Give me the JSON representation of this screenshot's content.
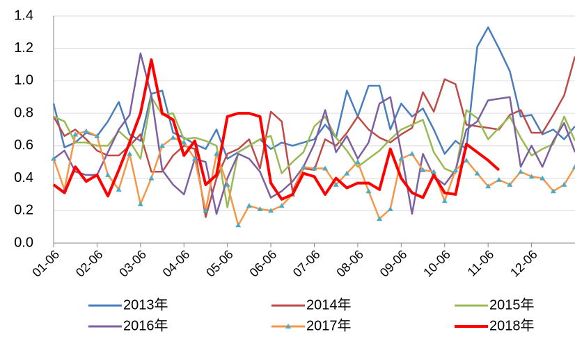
{
  "chart_data": {
    "type": "line",
    "categories": [
      "01-06",
      null,
      null,
      null,
      "02-06",
      null,
      null,
      null,
      "03-06",
      null,
      null,
      null,
      "04-06",
      null,
      null,
      null,
      "05-06",
      null,
      null,
      null,
      "06-06",
      null,
      null,
      null,
      "07-06",
      null,
      null,
      null,
      "08-06",
      null,
      null,
      null,
      "09-06",
      null,
      null,
      null,
      "10-06",
      null,
      null,
      null,
      "11-06",
      null,
      null,
      null,
      "12-06",
      null,
      null,
      null,
      null
    ],
    "series": [
      {
        "name": "2013年",
        "color": "#4a7ebb",
        "values": [
          0.86,
          0.59,
          0.62,
          0.68,
          0.66,
          0.75,
          0.87,
          0.67,
          0.63,
          0.92,
          0.94,
          0.68,
          0.65,
          0.61,
          0.58,
          0.7,
          0.52,
          0.56,
          0.6,
          0.64,
          0.58,
          0.62,
          0.6,
          0.62,
          0.64,
          0.73,
          0.65,
          0.94,
          0.78,
          0.97,
          0.97,
          0.7,
          0.86,
          0.78,
          0.83,
          0.7,
          0.55,
          0.63,
          0.58,
          1.21,
          1.33,
          1.2,
          1.06,
          0.78,
          0.79,
          0.67,
          0.7,
          0.64,
          0.72
        ]
      },
      {
        "name": "2014年",
        "color": "#be4b48",
        "values": [
          0.78,
          0.66,
          0.7,
          0.64,
          0.57,
          0.54,
          0.54,
          0.6,
          0.67,
          0.44,
          0.44,
          0.54,
          0.6,
          0.58,
          0.16,
          0.4,
          0.55,
          0.58,
          0.64,
          0.46,
          0.81,
          0.75,
          0.32,
          0.46,
          0.45,
          0.64,
          0.6,
          0.68,
          0.78,
          0.7,
          0.65,
          0.62,
          0.67,
          0.71,
          0.93,
          0.81,
          1.01,
          0.98,
          0.73,
          0.72,
          0.71,
          0.7,
          0.79,
          0.82,
          0.68,
          0.68,
          0.79,
          0.91,
          1.15
        ]
      },
      {
        "name": "2015年",
        "color": "#98b954",
        "values": [
          0.78,
          0.75,
          0.62,
          0.62,
          0.6,
          0.6,
          0.69,
          0.63,
          0.52,
          0.9,
          0.79,
          0.8,
          0.64,
          0.65,
          0.63,
          0.6,
          0.22,
          0.56,
          0.6,
          0.64,
          0.66,
          0.43,
          0.5,
          0.56,
          0.72,
          0.78,
          0.65,
          0.57,
          0.47,
          0.52,
          0.57,
          0.64,
          0.7,
          0.73,
          0.76,
          0.56,
          0.46,
          0.43,
          0.82,
          0.77,
          0.64,
          0.71,
          0.78,
          0.65,
          0.54,
          0.58,
          0.61,
          0.78,
          0.63
        ]
      },
      {
        "name": "2016年",
        "color": "#7d60a0",
        "values": [
          0.52,
          0.57,
          0.44,
          0.42,
          0.42,
          0.56,
          0.7,
          0.79,
          1.17,
          0.91,
          0.45,
          0.36,
          0.3,
          0.52,
          0.5,
          0.18,
          0.4,
          0.55,
          0.52,
          0.44,
          0.28,
          0.32,
          0.38,
          0.47,
          0.61,
          0.82,
          0.56,
          0.66,
          0.52,
          0.62,
          0.86,
          0.9,
          0.56,
          0.18,
          0.55,
          0.41,
          0.36,
          0.45,
          0.7,
          0.75,
          0.88,
          0.89,
          0.9,
          0.47,
          0.6,
          0.47,
          0.63,
          0.74,
          0.56
        ]
      },
      {
        "name": "2017年",
        "color": "#f79646",
        "marker": "triangle",
        "marker_color": "#4bacc6",
        "values": [
          0.52,
          0.33,
          0.67,
          0.69,
          0.66,
          0.42,
          0.33,
          0.55,
          0.24,
          0.4,
          0.6,
          0.65,
          0.62,
          0.52,
          0.2,
          0.55,
          0.36,
          0.11,
          0.23,
          0.21,
          0.2,
          0.23,
          0.3,
          0.47,
          0.46,
          0.46,
          0.36,
          0.43,
          0.5,
          0.32,
          0.15,
          0.21,
          0.52,
          0.55,
          0.45,
          0.44,
          0.26,
          0.45,
          0.51,
          0.43,
          0.35,
          0.39,
          0.36,
          0.44,
          0.41,
          0.4,
          0.32,
          0.36,
          0.47
        ]
      },
      {
        "name": "2018年",
        "color": "#ff0000",
        "width": 4,
        "values": [
          0.36,
          0.31,
          0.47,
          0.38,
          0.42,
          0.29,
          0.45,
          0.62,
          0.8,
          1.13,
          0.8,
          0.76,
          0.54,
          0.63,
          0.36,
          0.42,
          0.78,
          0.8,
          0.8,
          0.78,
          0.37,
          0.27,
          0.3,
          0.43,
          0.41,
          0.3,
          0.4,
          0.34,
          0.37,
          0.37,
          0.33,
          0.58,
          0.4,
          0.31,
          0.28,
          0.42,
          0.31,
          0.3,
          0.61,
          0.56,
          0.51,
          0.45,
          null,
          null,
          null,
          null,
          null,
          null,
          null
        ]
      }
    ],
    "ylim": [
      0,
      1.4
    ],
    "yticks": [
      {
        "value": 0,
        "label": "0.0"
      },
      0.2,
      0.4,
      0.6,
      0.8,
      {
        "value": 1,
        "label": "1.0"
      },
      1.2,
      1.4
    ],
    "grid": true,
    "legend": "bottom"
  }
}
